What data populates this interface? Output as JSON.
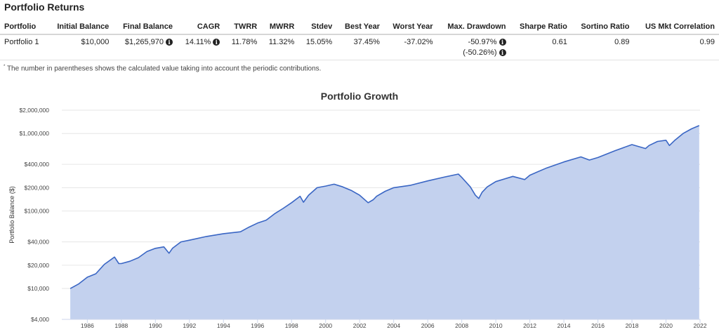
{
  "section_title": "Portfolio Returns",
  "table": {
    "headers": [
      "Portfolio",
      "Initial Balance",
      "Final Balance",
      "CAGR",
      "TWRR",
      "MWRR",
      "Stdev",
      "Best Year",
      "Worst Year",
      "Max. Drawdown",
      "Sharpe Ratio",
      "Sortino Ratio",
      "US Mkt Correlation"
    ],
    "row": {
      "portfolio": "Portfolio 1",
      "initial_balance": "$10,000",
      "final_balance": "$1,265,970",
      "cagr": "14.11%",
      "twrr": "11.78%",
      "mwrr": "11.32%",
      "stdev": "15.05%",
      "best_year": "37.45%",
      "worst_year": "-37.02%",
      "max_drawdown": "-50.97%",
      "max_drawdown_contrib": "(-50.26%)",
      "sharpe": "0.61",
      "sortino": "0.89",
      "us_mkt_corr": "0.99"
    },
    "info_icon_glyph": "i"
  },
  "footnote": {
    "marker": "*",
    "text": "The number in parentheses shows the calculated value taking into account the periodic contributions."
  },
  "chart_data": {
    "type": "area",
    "title": "Portfolio Growth",
    "xlabel": "",
    "ylabel": "Portfolio Balance ($)",
    "y_scale": "log",
    "ylim": [
      4000,
      2000000
    ],
    "xlim": [
      1984.5,
      2022.0
    ],
    "y_ticks": [
      {
        "value": 2000000,
        "label": "$2,000,000"
      },
      {
        "value": 1000000,
        "label": "$1,000,000"
      },
      {
        "value": 400000,
        "label": "$400,000"
      },
      {
        "value": 200000,
        "label": "$200,000"
      },
      {
        "value": 100000,
        "label": "$100,000"
      },
      {
        "value": 40000,
        "label": "$40,000"
      },
      {
        "value": 20000,
        "label": "$20,000"
      },
      {
        "value": 10000,
        "label": "$10,000"
      },
      {
        "value": 4000,
        "label": "$4,000"
      }
    ],
    "x_ticks": [
      "1986",
      "1988",
      "1990",
      "1992",
      "1994",
      "1996",
      "1998",
      "2000",
      "2002",
      "2004",
      "2006",
      "2008",
      "2010",
      "2012",
      "2014",
      "2016",
      "2018",
      "2020",
      "2022"
    ],
    "grid": true,
    "legend": "none",
    "line_color": "#3a66c4",
    "fill_color": "#c3d1ee",
    "series": [
      {
        "x": [
          1985.0,
          1985.5,
          1986.0,
          1986.5,
          1987.0,
          1987.6,
          1987.85,
          1988.0,
          1988.5,
          1989.0,
          1989.5,
          1990.0,
          1990.5,
          1990.8,
          1991.0,
          1991.5,
          1992.0,
          1993.0,
          1994.0,
          1995.0,
          1995.5,
          1996.0,
          1996.5,
          1997.0,
          1997.5,
          1998.0,
          1998.5,
          1998.7,
          1999.0,
          1999.5,
          2000.0,
          2000.5,
          2001.0,
          2001.5,
          2002.0,
          2002.5,
          2002.8,
          2003.0,
          2003.5,
          2004.0,
          2005.0,
          2006.0,
          2007.0,
          2007.8,
          2008.0,
          2008.5,
          2008.8,
          2009.0,
          2009.2,
          2009.5,
          2010.0,
          2011.0,
          2011.7,
          2012.0,
          2013.0,
          2014.0,
          2015.0,
          2015.5,
          2016.0,
          2017.0,
          2018.0,
          2018.8,
          2019.0,
          2019.5,
          2020.0,
          2020.2,
          2020.5,
          2021.0,
          2021.5,
          2021.95
        ],
        "y": [
          10000,
          11500,
          14000,
          15500,
          20500,
          25500,
          21000,
          21000,
          22500,
          25000,
          30000,
          33000,
          34500,
          28500,
          33000,
          40000,
          42000,
          47000,
          51000,
          54000,
          62000,
          70000,
          76000,
          92000,
          108000,
          128000,
          155000,
          130000,
          160000,
          200000,
          210000,
          222000,
          205000,
          185000,
          160000,
          128000,
          140000,
          155000,
          180000,
          200000,
          215000,
          245000,
          275000,
          300000,
          272000,
          205000,
          160000,
          145000,
          175000,
          205000,
          240000,
          280000,
          255000,
          290000,
          360000,
          430000,
          500000,
          455000,
          490000,
          600000,
          720000,
          640000,
          700000,
          790000,
          820000,
          700000,
          810000,
          1000000,
          1150000,
          1265970
        ]
      }
    ]
  }
}
